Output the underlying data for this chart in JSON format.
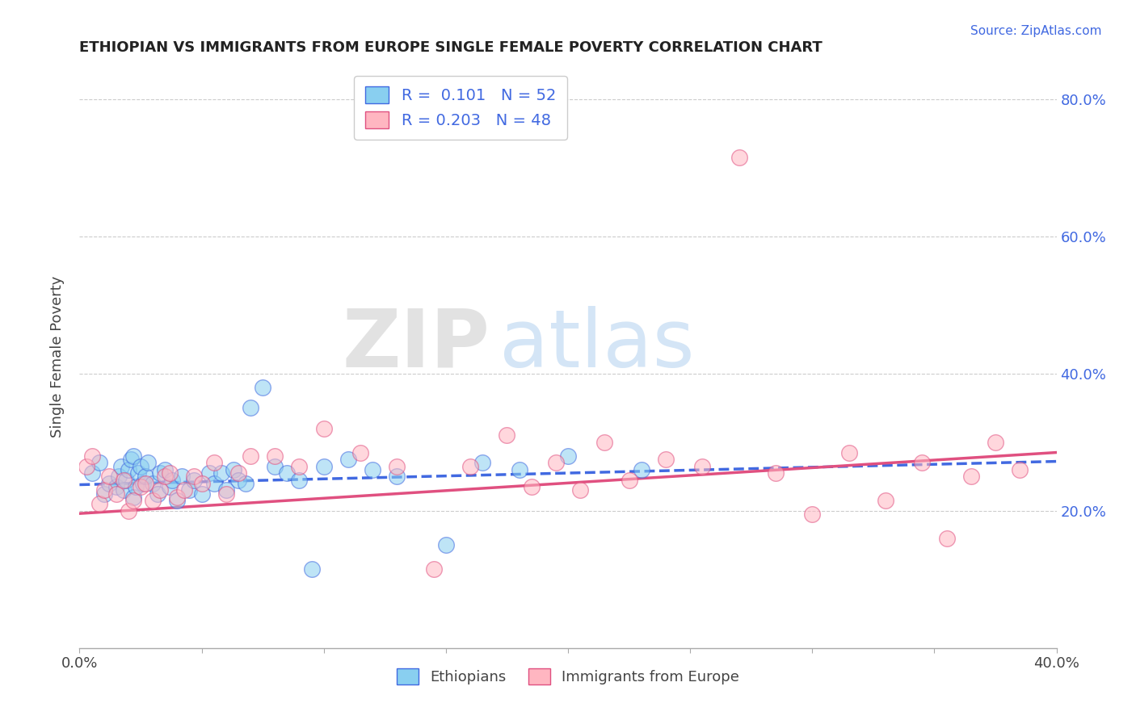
{
  "title": "ETHIOPIAN VS IMMIGRANTS FROM EUROPE SINGLE FEMALE POVERTY CORRELATION CHART",
  "source": "Source: ZipAtlas.com",
  "ylabel": "Single Female Poverty",
  "watermark_zip": "ZIP",
  "watermark_atlas": "atlas",
  "legend_r1": "R =  0.101",
  "legend_n1": "N = 52",
  "legend_r2": "R = 0.203",
  "legend_n2": "N = 48",
  "xlim": [
    0.0,
    0.4
  ],
  "ylim": [
    0.0,
    0.85
  ],
  "yticks": [
    0.2,
    0.4,
    0.6,
    0.8
  ],
  "color_ethiopian": "#89CFF0",
  "color_europe": "#FFB6C1",
  "line_color_ethiopian": "#4169E1",
  "line_color_europe": "#E05080",
  "ethiopian_x": [
    0.005,
    0.008,
    0.01,
    0.012,
    0.015,
    0.016,
    0.017,
    0.018,
    0.019,
    0.02,
    0.021,
    0.022,
    0.022,
    0.023,
    0.024,
    0.025,
    0.026,
    0.027,
    0.028,
    0.03,
    0.032,
    0.033,
    0.035,
    0.037,
    0.038,
    0.04,
    0.042,
    0.045,
    0.047,
    0.05,
    0.053,
    0.055,
    0.058,
    0.06,
    0.063,
    0.065,
    0.068,
    0.07,
    0.075,
    0.08,
    0.085,
    0.09,
    0.095,
    0.1,
    0.11,
    0.12,
    0.13,
    0.15,
    0.165,
    0.18,
    0.2,
    0.23
  ],
  "ethiopian_y": [
    0.255,
    0.27,
    0.225,
    0.24,
    0.235,
    0.25,
    0.265,
    0.23,
    0.245,
    0.26,
    0.275,
    0.22,
    0.28,
    0.235,
    0.255,
    0.265,
    0.24,
    0.25,
    0.27,
    0.24,
    0.225,
    0.255,
    0.26,
    0.235,
    0.245,
    0.215,
    0.25,
    0.23,
    0.245,
    0.225,
    0.255,
    0.24,
    0.255,
    0.23,
    0.26,
    0.245,
    0.24,
    0.35,
    0.38,
    0.265,
    0.255,
    0.245,
    0.115,
    0.265,
    0.275,
    0.26,
    0.25,
    0.15,
    0.27,
    0.26,
    0.28,
    0.26
  ],
  "europe_x": [
    0.003,
    0.005,
    0.008,
    0.01,
    0.012,
    0.015,
    0.018,
    0.02,
    0.022,
    0.025,
    0.027,
    0.03,
    0.033,
    0.035,
    0.037,
    0.04,
    0.043,
    0.047,
    0.05,
    0.055,
    0.06,
    0.065,
    0.07,
    0.08,
    0.09,
    0.1,
    0.115,
    0.13,
    0.145,
    0.16,
    0.175,
    0.185,
    0.195,
    0.205,
    0.215,
    0.225,
    0.24,
    0.255,
    0.27,
    0.285,
    0.3,
    0.315,
    0.33,
    0.345,
    0.355,
    0.365,
    0.375,
    0.385
  ],
  "europe_y": [
    0.265,
    0.28,
    0.21,
    0.23,
    0.25,
    0.225,
    0.245,
    0.2,
    0.215,
    0.235,
    0.24,
    0.215,
    0.23,
    0.25,
    0.255,
    0.22,
    0.23,
    0.25,
    0.24,
    0.27,
    0.225,
    0.255,
    0.28,
    0.28,
    0.265,
    0.32,
    0.285,
    0.265,
    0.115,
    0.265,
    0.31,
    0.235,
    0.27,
    0.23,
    0.3,
    0.245,
    0.275,
    0.265,
    0.715,
    0.255,
    0.195,
    0.285,
    0.215,
    0.27,
    0.16,
    0.25,
    0.3,
    0.26
  ],
  "trendline_eth_x0": 0.0,
  "trendline_eth_x1": 0.4,
  "trendline_eth_y0": 0.238,
  "trendline_eth_y1": 0.272,
  "trendline_eur_x0": 0.0,
  "trendline_eur_x1": 0.4,
  "trendline_eur_y0": 0.196,
  "trendline_eur_y1": 0.285
}
